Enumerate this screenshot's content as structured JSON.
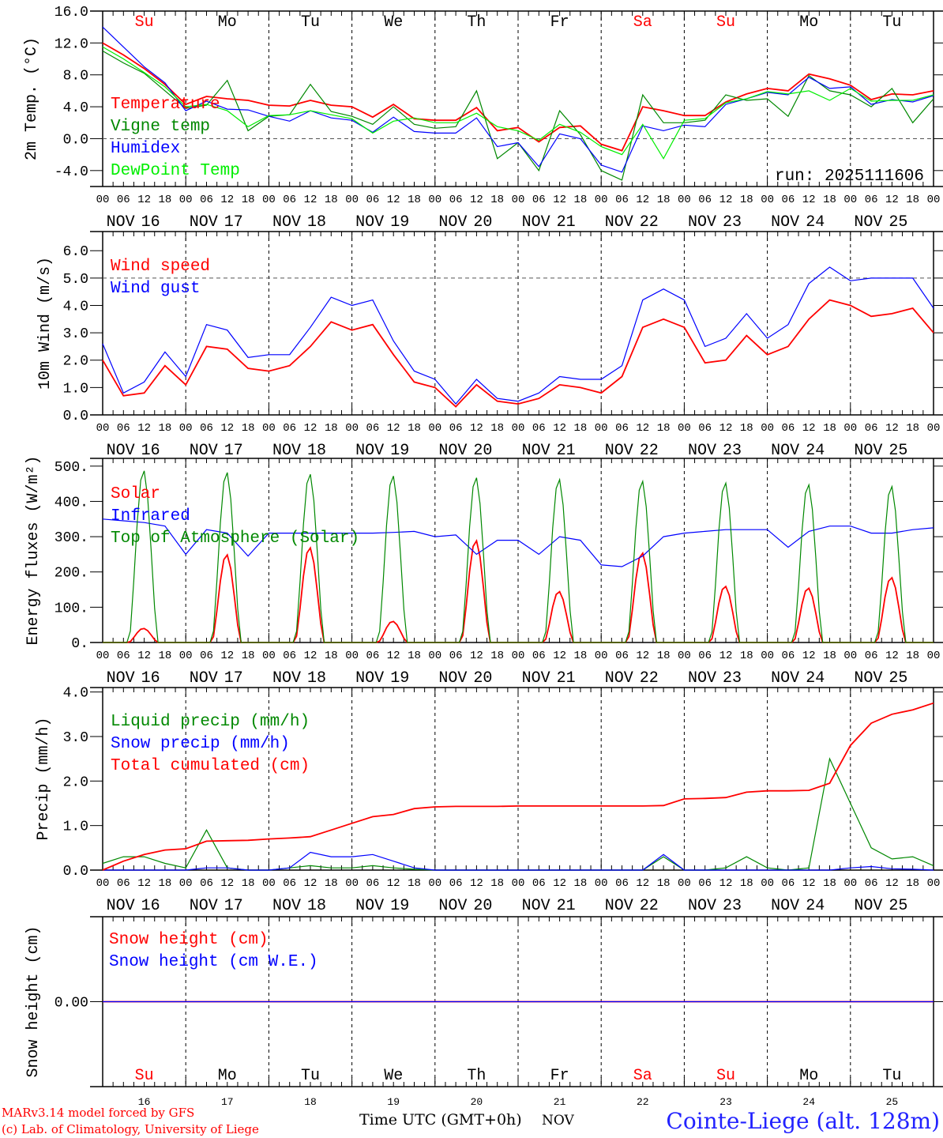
{
  "chart_data": [
    {
      "type": "line",
      "id": "temp",
      "ylabel": "2m Temp. (°C)",
      "ylim": [
        -6,
        16
      ],
      "yticks": [
        16,
        12,
        8,
        4,
        0,
        -4
      ],
      "ytick_labels": [
        "16.0",
        "12.0",
        "8.0",
        "4.0",
        "0.0",
        "-4.0"
      ],
      "reference_line": 0,
      "annotation": "run: 2025111606",
      "x_step_hours": 6,
      "series": [
        {
          "name": "Temperature",
          "color": "#ff0000",
          "values": [
            12.0,
            10.5,
            8.8,
            6.8,
            4.3,
            5.3,
            5.0,
            4.8,
            4.2,
            4.1,
            4.8,
            4.2,
            4.0,
            2.7,
            4.3,
            2.5,
            2.3,
            2.3,
            3.9,
            1.0,
            1.4,
            -0.4,
            1.4,
            1.6,
            -0.7,
            -1.5,
            4.0,
            3.5,
            2.9,
            2.9,
            4.6,
            5.6,
            6.3,
            6.0,
            8.1,
            7.5,
            6.7,
            4.9,
            5.6,
            5.5,
            6.0
          ]
        },
        {
          "name": "Vigne temp",
          "color": "#008800",
          "values": [
            11.0,
            9.5,
            8.2,
            6.0,
            3.8,
            4.2,
            7.3,
            1.0,
            2.8,
            3.0,
            6.8,
            3.4,
            2.8,
            1.8,
            4.0,
            1.8,
            1.3,
            1.5,
            6.0,
            -2.5,
            -0.5,
            -4.0,
            3.5,
            0.5,
            -4.0,
            -5.2,
            5.5,
            2.0,
            2.0,
            2.3,
            5.5,
            4.8,
            5.0,
            2.8,
            7.9,
            6.0,
            5.5,
            4.0,
            6.3,
            2.0,
            5.0
          ]
        },
        {
          "name": "Humidex",
          "color": "#0000ff",
          "values": [
            14.0,
            11.5,
            9.0,
            7.0,
            3.5,
            4.7,
            3.7,
            3.6,
            2.8,
            2.2,
            3.5,
            2.6,
            2.3,
            0.8,
            2.7,
            0.9,
            0.7,
            0.7,
            2.6,
            -1.0,
            -0.5,
            -3.5,
            0.6,
            0.0,
            -3.3,
            -4.2,
            1.6,
            1.0,
            1.7,
            1.5,
            4.3,
            5.0,
            5.8,
            5.5,
            7.7,
            6.3,
            6.5,
            4.3,
            4.9,
            4.6,
            5.4
          ]
        },
        {
          "name": "DewPoint Temp",
          "color": "#00ee00",
          "values": [
            11.5,
            10.0,
            8.3,
            6.5,
            4.0,
            4.3,
            3.5,
            1.5,
            2.9,
            3.0,
            3.5,
            3.0,
            2.5,
            0.7,
            2.2,
            2.6,
            2.0,
            2.0,
            3.2,
            1.5,
            1.0,
            -0.2,
            1.8,
            0.8,
            -1.0,
            -2.0,
            1.8,
            -2.5,
            2.3,
            2.5,
            4.5,
            5.0,
            5.9,
            5.6,
            6.0,
            4.8,
            6.3,
            4.7,
            4.8,
            4.8,
            5.5
          ]
        }
      ]
    },
    {
      "type": "line",
      "id": "wind",
      "ylabel": "10m Wind (m/s)",
      "ylim": [
        0,
        6.7
      ],
      "yticks": [
        0,
        1,
        2,
        3,
        4,
        5,
        6
      ],
      "ytick_labels": [
        "0.0",
        "1.0",
        "2.0",
        "3.0",
        "4.0",
        "5.0",
        "6.0"
      ],
      "reference_line": 5,
      "x_step_hours": 6,
      "series": [
        {
          "name": "Wind speed",
          "color": "#ff0000",
          "values": [
            2.0,
            0.7,
            0.8,
            1.8,
            1.1,
            2.5,
            2.4,
            1.7,
            1.6,
            1.8,
            2.5,
            3.4,
            3.1,
            3.3,
            2.2,
            1.2,
            1.0,
            0.3,
            1.1,
            0.5,
            0.4,
            0.6,
            1.1,
            1.0,
            0.8,
            1.4,
            3.2,
            3.5,
            3.2,
            1.9,
            2.0,
            2.9,
            2.2,
            2.5,
            3.5,
            4.2,
            4.0,
            3.6,
            3.7,
            3.9,
            3.0
          ]
        },
        {
          "name": "Wind gust",
          "color": "#0000ff",
          "values": [
            2.6,
            0.8,
            1.2,
            2.3,
            1.4,
            3.3,
            3.1,
            2.1,
            2.2,
            2.2,
            3.2,
            4.3,
            4.0,
            4.2,
            2.7,
            1.6,
            1.3,
            0.4,
            1.3,
            0.6,
            0.5,
            0.8,
            1.4,
            1.3,
            1.3,
            1.8,
            4.2,
            4.6,
            4.2,
            2.5,
            2.8,
            3.7,
            2.8,
            3.3,
            4.8,
            5.4,
            4.9,
            5.0,
            5.0,
            5.0,
            3.9
          ]
        }
      ]
    },
    {
      "type": "line",
      "id": "energy",
      "ylabel": "Energy fluxes (W/m²)",
      "ylim": [
        0,
        522
      ],
      "yticks": [
        0,
        100,
        200,
        300,
        400,
        500
      ],
      "ytick_labels": [
        "0.",
        "100.",
        "200.",
        "300.",
        "400.",
        "500."
      ],
      "series": [
        {
          "name": "Solar",
          "color": "#ff0000",
          "daily_peak": [
            40,
            250,
            270,
            60,
            290,
            145,
            255,
            160,
            155,
            185
          ]
        },
        {
          "name": "Infrared",
          "color": "#0000ff",
          "x_step_hours": 6,
          "values": [
            350,
            345,
            340,
            330,
            250,
            320,
            310,
            245,
            310,
            310,
            310,
            310,
            310,
            310,
            312,
            315,
            300,
            305,
            250,
            290,
            290,
            250,
            300,
            290,
            220,
            215,
            245,
            300,
            310,
            315,
            320,
            320,
            320,
            270,
            315,
            330,
            330,
            310,
            310,
            320,
            325
          ]
        },
        {
          "name": "Top of Atmosphere (Solar)",
          "color": "#008800",
          "daily_peak": [
            490,
            485,
            480,
            475,
            470,
            465,
            460,
            455,
            450,
            445
          ]
        }
      ]
    },
    {
      "type": "line",
      "id": "precip",
      "ylabel": "Precip (mm/h)",
      "ylim": [
        0,
        4.1
      ],
      "yticks": [
        0,
        1,
        2,
        3,
        4
      ],
      "ytick_labels": [
        "0.0",
        "1.0",
        "2.0",
        "3.0",
        "4.0"
      ],
      "x_step_hours": 6,
      "series": [
        {
          "name": "Liquid precip (mm/h)",
          "color": "#008800",
          "values": [
            0.15,
            0.3,
            0.3,
            0.15,
            0.05,
            0.9,
            0.05,
            0,
            0,
            0.05,
            0.1,
            0.05,
            0.05,
            0.1,
            0.05,
            0.02,
            0,
            0,
            0,
            0,
            0,
            0,
            0,
            0,
            0,
            0,
            0,
            0.3,
            0,
            0,
            0.05,
            0.3,
            0.05,
            0,
            0.05,
            2.5,
            1.5,
            0.5,
            0.25,
            0.3,
            0.1
          ]
        },
        {
          "name": "Snow precip (mm/h)",
          "color": "#0000ff",
          "values": [
            0,
            0,
            0,
            0,
            0,
            0.05,
            0.05,
            0,
            0,
            0.05,
            0.4,
            0.3,
            0.3,
            0.35,
            0.2,
            0.05,
            0,
            0,
            0,
            0,
            0,
            0,
            0,
            0,
            0,
            0,
            0,
            0.35,
            0,
            0,
            0,
            0,
            0,
            0,
            0,
            0,
            0.05,
            0.08,
            0.03,
            0.02,
            0
          ]
        },
        {
          "name": "Total cumulated (cm)",
          "color": "#ff0000",
          "values": [
            0.0,
            0.2,
            0.35,
            0.45,
            0.48,
            0.65,
            0.66,
            0.67,
            0.7,
            0.72,
            0.75,
            0.9,
            1.05,
            1.2,
            1.25,
            1.38,
            1.42,
            1.43,
            1.43,
            1.43,
            1.44,
            1.44,
            1.44,
            1.44,
            1.44,
            1.44,
            1.44,
            1.45,
            1.6,
            1.61,
            1.63,
            1.75,
            1.78,
            1.78,
            1.79,
            1.95,
            2.8,
            3.3,
            3.5,
            3.6,
            3.75
          ]
        }
      ]
    },
    {
      "type": "line",
      "id": "snow",
      "ylabel": "Snow height (cm)",
      "ylim": [
        -1,
        1
      ],
      "yticks": [
        0
      ],
      "ytick_labels": [
        "0.00"
      ],
      "x_step_hours": 6,
      "series": [
        {
          "name": "Snow height (cm)",
          "color": "#ff0000",
          "values": [
            0,
            0,
            0,
            0,
            0,
            0,
            0,
            0,
            0,
            0,
            0,
            0,
            0,
            0,
            0,
            0,
            0,
            0,
            0,
            0,
            0,
            0,
            0,
            0,
            0,
            0,
            0,
            0,
            0,
            0,
            0,
            0,
            0,
            0,
            0,
            0,
            0,
            0,
            0,
            0,
            0
          ]
        },
        {
          "name": "Snow height (cm W.E.)",
          "color": "#0000ff",
          "values": [
            0,
            0,
            0,
            0,
            0,
            0,
            0,
            0,
            0,
            0,
            0,
            0,
            0,
            0,
            0,
            0,
            0,
            0,
            0,
            0,
            0,
            0,
            0,
            0,
            0,
            0,
            0,
            0,
            0,
            0,
            0,
            0,
            0,
            0,
            0,
            0,
            0,
            0,
            0,
            0,
            0
          ]
        }
      ]
    }
  ],
  "x_axis": {
    "hour_labels": [
      "00",
      "06",
      "12",
      "18"
    ],
    "month": "NOV",
    "dates": [
      "16",
      "17",
      "18",
      "19",
      "20",
      "21",
      "22",
      "23",
      "24",
      "25"
    ],
    "weekdays": [
      "Su",
      "Mo",
      "Tu",
      "We",
      "Th",
      "Fr",
      "Sa",
      "Su",
      "Mo",
      "Tu"
    ],
    "weekend_color": "#ff0000",
    "weekend": [
      true,
      false,
      false,
      false,
      false,
      false,
      true,
      true,
      false,
      false
    ],
    "title": "Time UTC (GMT+0h)"
  },
  "footer": {
    "model": "MARv3.14 model forced by GFS",
    "credit": "(c) Lab. of Climatology, University of Liege",
    "station": "Cointe-Liege (alt. 128m)"
  }
}
